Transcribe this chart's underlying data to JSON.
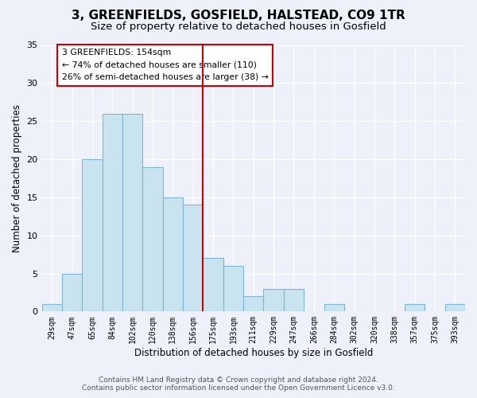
{
  "title": "3, GREENFIELDS, GOSFIELD, HALSTEAD, CO9 1TR",
  "subtitle": "Size of property relative to detached houses in Gosfield",
  "xlabel": "Distribution of detached houses by size in Gosfield",
  "ylabel": "Number of detached properties",
  "bin_labels": [
    "29sqm",
    "47sqm",
    "65sqm",
    "84sqm",
    "102sqm",
    "120sqm",
    "138sqm",
    "156sqm",
    "175sqm",
    "193sqm",
    "211sqm",
    "229sqm",
    "247sqm",
    "266sqm",
    "284sqm",
    "302sqm",
    "320sqm",
    "338sqm",
    "357sqm",
    "375sqm",
    "393sqm"
  ],
  "bar_heights": [
    1,
    5,
    20,
    26,
    26,
    19,
    15,
    14,
    7,
    6,
    2,
    3,
    3,
    0,
    1,
    0,
    0,
    0,
    1,
    0,
    1
  ],
  "bar_color": "#c9e4f0",
  "bar_edge_color": "#7ab8d4",
  "annotation_title": "3 GREENFIELDS: 154sqm",
  "annotation_line1": "← 74% of detached houses are smaller (110)",
  "annotation_line2": "26% of semi-detached houses are larger (38) →",
  "annotation_box_color": "#ffffff",
  "annotation_box_edge_color": "#cc0000",
  "red_line_index": 7,
  "ylim": [
    0,
    35
  ],
  "yticks": [
    0,
    5,
    10,
    15,
    20,
    25,
    30,
    35
  ],
  "footer_line1": "Contains HM Land Registry data © Crown copyright and database right 2024.",
  "footer_line2": "Contains public sector information licensed under the Open Government Licence v3.0.",
  "bg_color": "#eef0fa",
  "grid_color": "#ffffff",
  "title_fontsize": 11,
  "subtitle_fontsize": 9.5,
  "axis_label_fontsize": 8.5,
  "tick_fontsize": 7,
  "footer_fontsize": 6.5
}
